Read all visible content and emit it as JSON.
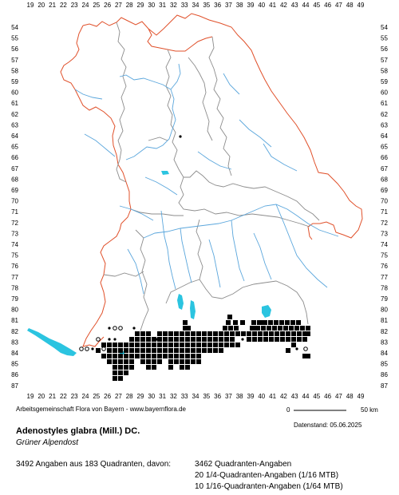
{
  "map": {
    "x_ticks": [
      "19",
      "20",
      "21",
      "22",
      "23",
      "24",
      "25",
      "26",
      "27",
      "28",
      "29",
      "30",
      "31",
      "32",
      "33",
      "34",
      "35",
      "36",
      "37",
      "38",
      "39",
      "40",
      "41",
      "42",
      "43",
      "44",
      "45",
      "46",
      "47",
      "48",
      "49"
    ],
    "y_ticks": [
      "54",
      "55",
      "56",
      "57",
      "58",
      "59",
      "60",
      "61",
      "62",
      "63",
      "64",
      "65",
      "66",
      "67",
      "68",
      "69",
      "70",
      "71",
      "72",
      "73",
      "74",
      "75",
      "76",
      "77",
      "78",
      "79",
      "80",
      "81",
      "82",
      "83",
      "84",
      "85",
      "86",
      "87"
    ],
    "colors": {
      "state_border": "#e0502a",
      "district_border": "#8c8c8c",
      "rivers": "#5aa6dc",
      "lakes": "#2bc4e0",
      "occurrence": "#000000"
    }
  },
  "scale": {
    "start": "0",
    "end": "50 km"
  },
  "credit": "Arbeitsgemeinschaft Flora von Bayern - www.bayernflora.de",
  "datestamp": "Datenstand: 05.06.2025",
  "species": "Adenostyles glabra (Mill.) DC.",
  "common_name": "Grüner Alpendost",
  "summary": "3492 Angaben aus 183 Quadranten, davon:",
  "stats": [
    "3462 Quadranten-Angaben",
    "20 1/4-Quadranten-Angaben (1/16 MTB)",
    "10 1/16-Quadranten-Angaben (1/64 MTB)"
  ]
}
